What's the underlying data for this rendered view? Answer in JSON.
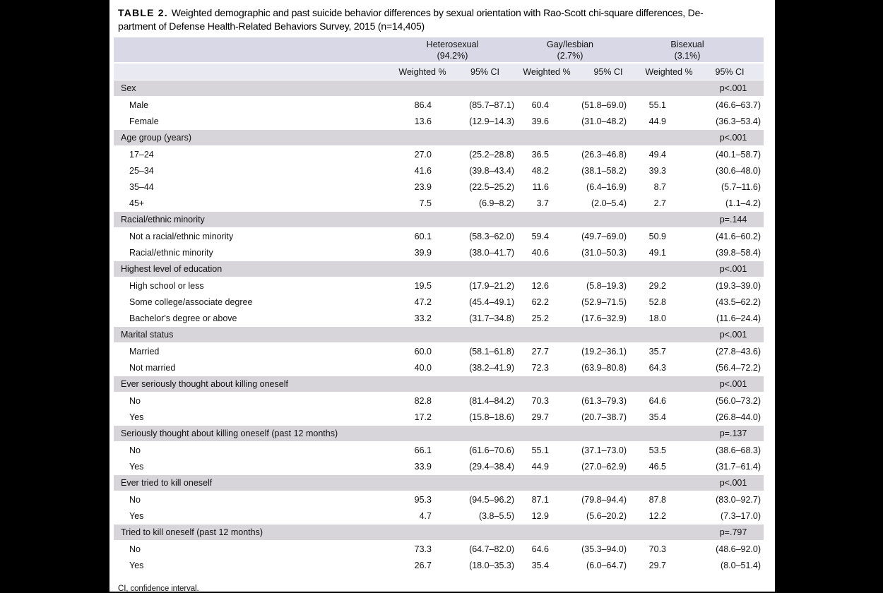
{
  "title": {
    "label": "TABLE 2.",
    "line1": "Weighted demographic and past suicide behavior differences by sexual orientation with Rao-Scott chi-square differences, De-",
    "line2": "partment of Defense Health-Related Behaviors Survey, 2015 (n=14,405)",
    "full": "TABLE 2. Weighted demographic and past suicide behavior differences by sexual orientation with Rao-Scott chi-square differences, Department of Defense Health-Related Behaviors Survey, 2015 (n=14,405)"
  },
  "columns": {
    "groups": [
      {
        "name": "Heterosexual",
        "pct": "(94.2%)"
      },
      {
        "name": "Gay/lesbian",
        "pct": "(2.7%)"
      },
      {
        "name": "Bisexual",
        "pct": "(3.1%)"
      }
    ],
    "subheaders": [
      "Weighted %",
      "95% CI",
      "Weighted %",
      "95% CI",
      "Weighted %",
      "95% CI"
    ]
  },
  "sections": [
    {
      "label": "Sex",
      "p": "p<.001",
      "rows": [
        {
          "label": "Male",
          "values": [
            "86.4",
            "(85.7–87.1)",
            "60.4",
            "(51.8–69.0)",
            "55.1",
            "(46.6–63.7)"
          ]
        },
        {
          "label": "Female",
          "values": [
            "13.6",
            "(12.9–14.3)",
            "39.6",
            "(31.0–48.2)",
            "44.9",
            "(36.3–53.4)"
          ]
        }
      ]
    },
    {
      "label": "Age group (years)",
      "p": "p<.001",
      "rows": [
        {
          "label": "17–24",
          "values": [
            "27.0",
            "(25.2–28.8)",
            "36.5",
            "(26.3–46.8)",
            "49.4",
            "(40.1–58.7)"
          ]
        },
        {
          "label": "25–34",
          "values": [
            "41.6",
            "(39.8–43.4)",
            "48.2",
            "(38.1–58.2)",
            "39.3",
            "(30.6–48.0)"
          ]
        },
        {
          "label": "35–44",
          "values": [
            "23.9",
            "(22.5–25.2)",
            "11.6",
            "(6.4–16.9)",
            "8.7",
            "(5.7–11.6)"
          ]
        },
        {
          "label": "45+",
          "values": [
            "7.5",
            "(6.9–8.2)",
            "3.7",
            "(2.0–5.4)",
            "2.7",
            "(1.1–4.2)"
          ]
        }
      ]
    },
    {
      "label": "Racial/ethnic minority",
      "p": "p=.144",
      "rows": [
        {
          "label": "Not a racial/ethnic minority",
          "values": [
            "60.1",
            "(58.3–62.0)",
            "59.4",
            "(49.7–69.0)",
            "50.9",
            "(41.6–60.2)"
          ]
        },
        {
          "label": "Racial/ethnic minority",
          "values": [
            "39.9",
            "(38.0–41.7)",
            "40.6",
            "(31.0–50.3)",
            "49.1",
            "(39.8–58.4)"
          ]
        }
      ]
    },
    {
      "label": "Highest level of education",
      "p": "p<.001",
      "rows": [
        {
          "label": "High school or less",
          "values": [
            "19.5",
            "(17.9–21.2)",
            "12.6",
            "(5.8–19.3)",
            "29.2",
            "(19.3–39.0)"
          ]
        },
        {
          "label": "Some college/associate degree",
          "values": [
            "47.2",
            "(45.4–49.1)",
            "62.2",
            "(52.9–71.5)",
            "52.8",
            "(43.5–62.2)"
          ]
        },
        {
          "label": "Bachelor's degree or above",
          "values": [
            "33.2",
            "(31.7–34.8)",
            "25.2",
            "(17.6–32.9)",
            "18.0",
            "(11.6–24.4)"
          ]
        }
      ]
    },
    {
      "label": "Marital status",
      "p": "p<.001",
      "rows": [
        {
          "label": "Married",
          "values": [
            "60.0",
            "(58.1–61.8)",
            "27.7",
            "(19.2–36.1)",
            "35.7",
            "(27.8–43.6)"
          ]
        },
        {
          "label": "Not married",
          "values": [
            "40.0",
            "(38.2–41.9)",
            "72.3",
            "(63.9–80.8)",
            "64.3",
            "(56.4–72.2)"
          ]
        }
      ]
    },
    {
      "label": "Ever seriously thought about killing oneself",
      "p": "p<.001",
      "rows": [
        {
          "label": "No",
          "values": [
            "82.8",
            "(81.4–84.2)",
            "70.3",
            "(61.3–79.3)",
            "64.6",
            "(56.0–73.2)"
          ]
        },
        {
          "label": "Yes",
          "values": [
            "17.2",
            "(15.8–18.6)",
            "29.7",
            "(20.7–38.7)",
            "35.4",
            "(26.8–44.0)"
          ]
        }
      ]
    },
    {
      "label": "Seriously thought about killing oneself (past 12 months)",
      "p": "p=.137",
      "rows": [
        {
          "label": "No",
          "values": [
            "66.1",
            "(61.6–70.6)",
            "55.1",
            "(37.1–73.0)",
            "53.5",
            "(38.6–68.3)"
          ]
        },
        {
          "label": "Yes",
          "values": [
            "33.9",
            "(29.4–38.4)",
            "44.9",
            "(27.0–62.9)",
            "46.5",
            "(31.7–61.4)"
          ]
        }
      ]
    },
    {
      "label": "Ever tried to kill oneself",
      "p": "p<.001",
      "rows": [
        {
          "label": "No",
          "values": [
            "95.3",
            "(94.5–96.2)",
            "87.1",
            "(79.8–94.4)",
            "87.8",
            "(83.0–92.7)"
          ]
        },
        {
          "label": "Yes",
          "values": [
            "4.7",
            "(3.8–5.5)",
            "12.9",
            "(5.6–20.2)",
            "12.2",
            "(7.3–17.0)"
          ]
        }
      ]
    },
    {
      "label": "Tried to kill oneself (past 12 months)",
      "p": "p=.797",
      "rows": [
        {
          "label": "No",
          "values": [
            "73.3",
            "(64.7–82.0)",
            "64.6",
            "(35.3–94.0)",
            "70.3",
            "(48.6–92.0)"
          ]
        },
        {
          "label": "Yes",
          "values": [
            "26.7",
            "(18.0–35.3)",
            "35.4",
            "(6.0–64.7)",
            "29.7",
            "(8.0–51.4)"
          ]
        }
      ]
    }
  ],
  "footnote": "CI, confidence interval.",
  "colors": {
    "page_background": "#000000",
    "paper": "#ffffff",
    "group_header_band": "#d8d8e6",
    "subheader_band": "#e9e9f2",
    "section_band": "#d7d5da",
    "text": "#111111"
  }
}
